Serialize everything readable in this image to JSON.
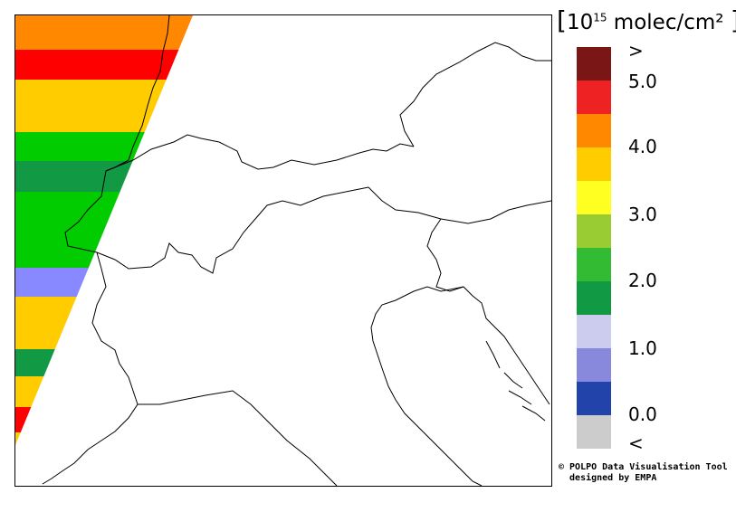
{
  "title_unit": {
    "open": "[",
    "base": "10",
    "exponent": "15",
    "unit": " molec/cm²",
    "close": "]"
  },
  "colorbar": {
    "colors": [
      "#7a1616",
      "#ee2222",
      "#ff8800",
      "#ffcc00",
      "#ffff22",
      "#99cc33",
      "#33bb33",
      "#119944",
      "#ccccee",
      "#8888dd",
      "#2244aa",
      "#cccccc"
    ],
    "labels": [
      ">",
      "5.0",
      "4.0",
      "3.0",
      "2.0",
      "1.0",
      "0.0",
      "<"
    ]
  },
  "swath": {
    "band_colors": [
      "#ff8800",
      "#ff0000",
      "#ffcc00",
      "#00cc00",
      "#119944",
      "#00cc00",
      "#8888ff",
      "#ffcc00",
      "#119944",
      "#ffcc00",
      "#ff0000",
      "#ffcc00"
    ]
  },
  "credit": {
    "line1": "© POLPO Data Visualisation Tool",
    "line2": "  designed by EMPA"
  }
}
